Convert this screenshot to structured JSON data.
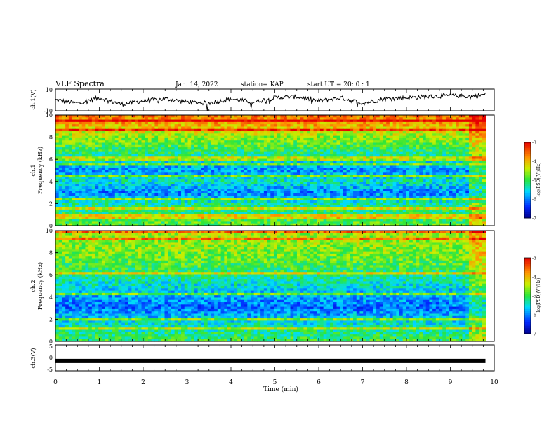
{
  "header": {
    "title": "VLF Spectra",
    "date": "Jan. 14, 2022",
    "station": "station= KAP",
    "start": "start UT =  20: 0  : 1"
  },
  "chart_data": [
    {
      "type": "line",
      "name": "ch1-waveform",
      "ylabel": "ch.1(V)",
      "ylim": [
        -10,
        10
      ],
      "tick_labels": [
        "10",
        "-10"
      ],
      "x_minutes": [
        0,
        0.5,
        1,
        1.5,
        2,
        2.5,
        3,
        3.5,
        4,
        4.5,
        5,
        5.5,
        6,
        6.5,
        7,
        7.5,
        8,
        8.5,
        9,
        9.5,
        9.8
      ],
      "values": [
        0,
        -3,
        2,
        -4,
        -1,
        1,
        -2,
        -3,
        1,
        -2,
        2,
        3,
        -1,
        2,
        -3,
        1,
        2,
        3,
        4,
        3,
        5
      ]
    },
    {
      "type": "heatmap",
      "name": "ch1-spectrogram",
      "ylabel_line1": "ch.1",
      "ylabel_line2": "Frequency (kHz)",
      "ylim": [
        0,
        10
      ],
      "y_ticks": [
        "0",
        "2",
        "4",
        "6",
        "8",
        "10"
      ],
      "colorbar": {
        "label": "log(PSD)(V²/Hz)",
        "range": [
          -7,
          -3
        ],
        "ticks": [
          "-3",
          "-4",
          "-5",
          "-6",
          "-7"
        ]
      },
      "band_profile_kHz": [
        0,
        1,
        2,
        3,
        4,
        5,
        6,
        7,
        8,
        9,
        10
      ],
      "band_profile_logpsd": [
        -4.8,
        -5.1,
        -5.3,
        -6.0,
        -5.4,
        -5.9,
        -5.4,
        -5.0,
        -4.6,
        -4.0,
        -3.6
      ]
    },
    {
      "type": "heatmap",
      "name": "ch2-spectrogram",
      "ylabel_line1": "ch.2",
      "ylabel_line2": "Frequency (kHz)",
      "ylim": [
        0,
        10
      ],
      "y_ticks": [
        "0",
        "2",
        "4",
        "6",
        "8",
        "10"
      ],
      "colorbar": {
        "label": "log(PSD)(V²/Hz)",
        "range": [
          -7,
          -3
        ],
        "ticks": [
          "-3",
          "-4",
          "-5",
          "-6",
          "-7"
        ]
      },
      "band_profile_kHz": [
        0,
        1,
        2,
        3,
        4,
        5,
        6,
        7,
        8,
        9,
        10
      ],
      "band_profile_logpsd": [
        -5.0,
        -5.3,
        -5.6,
        -6.1,
        -5.8,
        -5.5,
        -5.2,
        -4.9,
        -4.7,
        -4.6,
        -4.5
      ]
    },
    {
      "type": "line",
      "name": "ch3-waveform",
      "ylabel": "ch.3(V)",
      "ylim": [
        -5,
        5
      ],
      "tick_labels": [
        "5",
        "0",
        "-5"
      ],
      "x_minutes": [
        0,
        9.8
      ],
      "values": [
        -1.2,
        -1.2
      ]
    }
  ],
  "xaxis": {
    "label": "Time (min)",
    "range": [
      0,
      10
    ],
    "ticks": [
      "0",
      "1",
      "2",
      "3",
      "4",
      "5",
      "6",
      "7",
      "8",
      "9",
      "10"
    ]
  }
}
